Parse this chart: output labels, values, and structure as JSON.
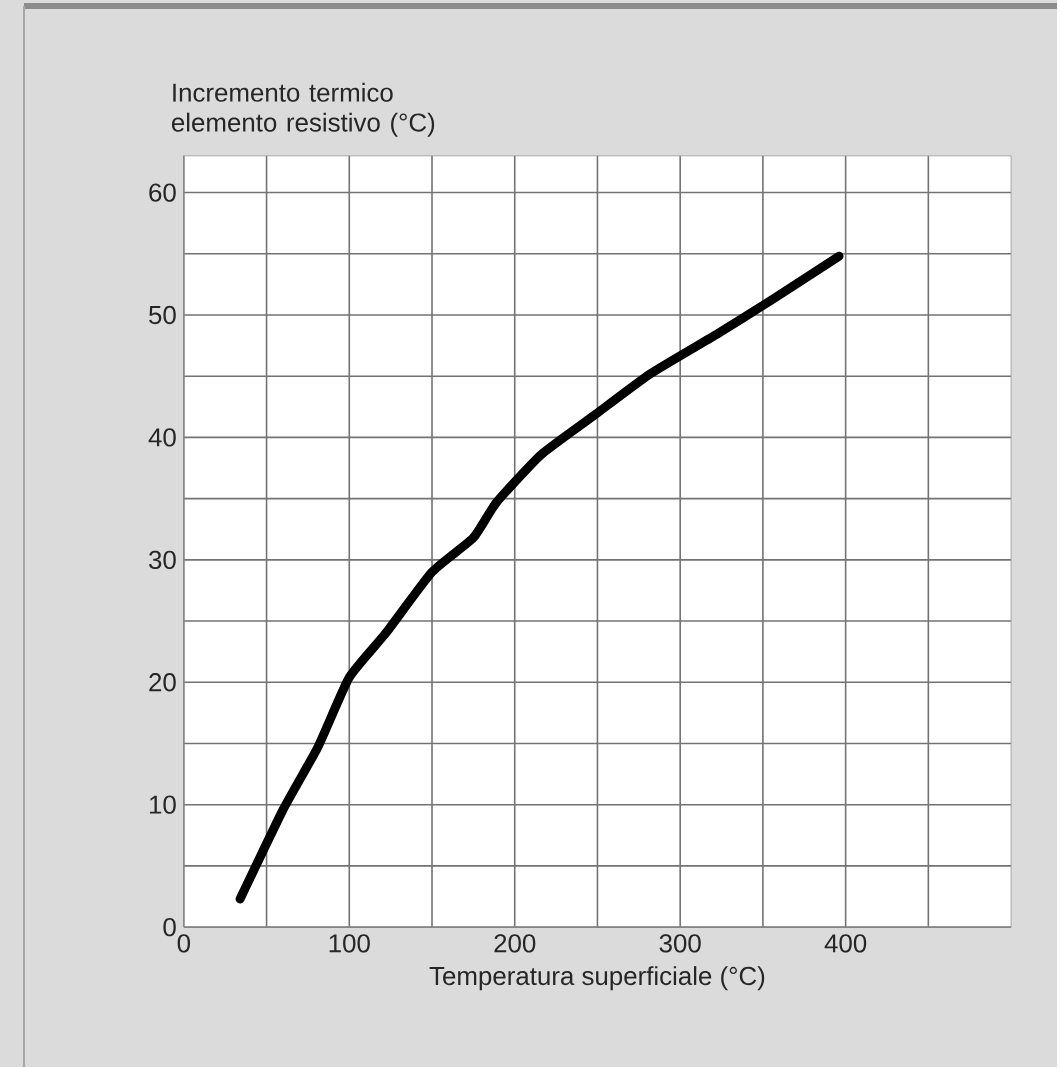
{
  "chart_data": {
    "type": "line",
    "xlabel": "Temperatura superficiale (°C)",
    "ylabel": "Incremento termico elemento resistivo (°C)",
    "series": [
      {
        "color": "#000000",
        "x": [
          34,
          60,
          81,
          100,
          122,
          150,
          175,
          189,
          216,
          249,
          282,
          323,
          355,
          396
        ],
        "values": [
          2.3,
          9.6,
          14.7,
          20.4,
          24,
          29,
          31.8,
          34.7,
          38.6,
          41.9,
          45.2,
          48.5,
          51.2,
          54.8
        ]
      }
    ],
    "xlim": [
      0,
      500
    ],
    "ylim": [
      0,
      63
    ],
    "xticks": [
      0,
      {
        "value": 50,
        "label": null
      },
      100,
      {
        "value": 150,
        "label": null
      },
      200,
      {
        "value": 250,
        "label": null
      },
      300,
      {
        "value": 350,
        "label": null
      },
      400,
      {
        "value": 450,
        "label": null
      }
    ],
    "yticks": [
      0,
      {
        "value": 5,
        "label": null
      },
      10,
      {
        "value": 15,
        "label": null
      },
      20,
      {
        "value": 25,
        "label": null
      },
      30,
      {
        "value": 35,
        "label": null
      },
      40,
      {
        "value": 45,
        "label": null
      },
      50,
      {
        "value": 55,
        "label": null
      },
      60
    ],
    "grid": true,
    "marker": "none",
    "line_style": "solid"
  }
}
